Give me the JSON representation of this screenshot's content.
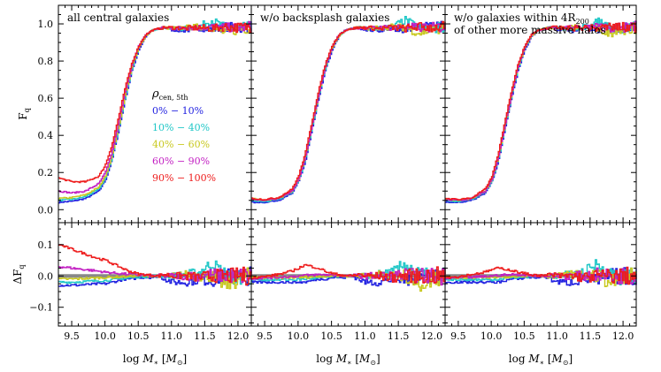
{
  "figure": {
    "panel_titles": [
      [
        "all central galaxies"
      ],
      [
        "w/o backsplash galaxies"
      ],
      [
        "w/o galaxies within 4R₂₀₀",
        "of other more massive halos"
      ]
    ],
    "xlabel": "log M∗ [M⊙]",
    "ylabel_top": "F_q",
    "ylabel_bottom": "ΔF_q",
    "legend_title": "ρcen, 5th"
  },
  "colors": {
    "0-10": "#1f1fe0",
    "10-40": "#1fc7c7",
    "40-60": "#c8c81e",
    "60-90": "#c21ec2",
    "90-100": "#ee1b1b",
    "zero_band": "#888888"
  },
  "chart_data": {
    "type": "line",
    "x": [
      9.3,
      9.5,
      9.7,
      9.9,
      10.0,
      10.1,
      10.2,
      10.3,
      10.4,
      10.5,
      10.6,
      10.7,
      10.8,
      10.9,
      11.0,
      11.2,
      11.4,
      11.6,
      11.8,
      12.0,
      12.2
    ],
    "xlim": [
      9.3,
      12.2
    ],
    "xticks": [
      "9.5",
      "10.0",
      "10.5",
      "11.0",
      "11.5",
      "12.0"
    ],
    "top_ylim": [
      -0.07,
      1.1
    ],
    "top_yticks": [
      "0.0",
      "0.2",
      "0.4",
      "0.6",
      "0.8",
      "1.0"
    ],
    "bottom_ylim": [
      -0.16,
      0.17
    ],
    "bottom_yticks": [
      "−0.1",
      "0.0",
      "0.1"
    ],
    "legend": [
      "0% − 10%",
      "10% − 40%",
      "40% − 60%",
      "60% − 90%",
      "90% − 100%"
    ],
    "panels": [
      {
        "series": [
          {
            "name": "0% − 10%",
            "color_key": "0-10",
            "values": [
              0.04,
              0.045,
              0.06,
              0.1,
              0.16,
              0.27,
              0.43,
              0.6,
              0.75,
              0.86,
              0.93,
              0.965,
              0.975,
              0.98,
              0.97,
              0.965,
              0.98,
              0.97,
              0.985,
              0.98,
              0.985
            ]
          },
          {
            "name": "10% − 40%",
            "color_key": "10-40",
            "values": [
              0.05,
              0.055,
              0.07,
              0.11,
              0.17,
              0.28,
              0.44,
              0.61,
              0.76,
              0.87,
              0.935,
              0.965,
              0.975,
              0.98,
              0.975,
              0.975,
              0.985,
              1.02,
              0.98,
              0.975,
              0.985
            ]
          },
          {
            "name": "40% − 60%",
            "color_key": "40-60",
            "values": [
              0.06,
              0.065,
              0.08,
              0.12,
              0.18,
              0.29,
              0.45,
              0.62,
              0.77,
              0.87,
              0.935,
              0.965,
              0.975,
              0.98,
              0.975,
              0.98,
              0.985,
              0.98,
              0.95,
              0.97,
              0.98
            ]
          },
          {
            "name": "60% − 90%",
            "color_key": "60-90",
            "values": [
              0.1,
              0.09,
              0.1,
              0.14,
              0.2,
              0.31,
              0.47,
              0.64,
              0.78,
              0.88,
              0.94,
              0.965,
              0.975,
              0.98,
              0.975,
              0.98,
              0.98,
              0.985,
              0.98,
              0.98,
              0.985
            ]
          },
          {
            "name": "90% − 100%",
            "color_key": "90-100",
            "values": [
              0.17,
              0.15,
              0.15,
              0.18,
              0.24,
              0.35,
              0.5,
              0.66,
              0.79,
              0.88,
              0.94,
              0.965,
              0.975,
              0.98,
              0.98,
              0.975,
              0.98,
              0.975,
              0.985,
              0.98,
              0.985
            ]
          }
        ],
        "delta_series": [
          {
            "name": "0% − 10%",
            "color_key": "0-10",
            "values": [
              -0.03,
              -0.03,
              -0.028,
              -0.025,
              -0.025,
              -0.02,
              -0.015,
              -0.01,
              -0.01,
              -0.005,
              -0.005,
              -0.005,
              0.0,
              -0.01,
              -0.02,
              -0.02,
              -0.01,
              -0.015,
              0.0,
              0.0,
              0.0
            ]
          },
          {
            "name": "10% − 40%",
            "color_key": "10-40",
            "values": [
              -0.02,
              -0.02,
              -0.018,
              -0.015,
              -0.015,
              -0.012,
              -0.01,
              -0.008,
              -0.005,
              -0.003,
              -0.002,
              0.0,
              0.0,
              0.0,
              0.0,
              0.005,
              0.01,
              0.04,
              0.005,
              -0.005,
              0.0
            ]
          },
          {
            "name": "40% − 60%",
            "color_key": "40-60",
            "values": [
              -0.01,
              -0.01,
              -0.008,
              -0.006,
              -0.005,
              -0.004,
              -0.003,
              -0.002,
              0.0,
              0.0,
              0.0,
              0.0,
              0.0,
              0.0,
              0.0,
              0.005,
              0.0,
              0.0,
              -0.03,
              -0.01,
              0.0
            ]
          },
          {
            "name": "60% − 90%",
            "color_key": "60-90",
            "values": [
              0.03,
              0.025,
              0.02,
              0.015,
              0.012,
              0.01,
              0.008,
              0.006,
              0.005,
              0.003,
              0.002,
              0.0,
              0.0,
              0.0,
              0.0,
              0.0,
              0.0,
              0.005,
              0.0,
              0.0,
              0.0
            ]
          },
          {
            "name": "90% − 100%",
            "color_key": "90-100",
            "values": [
              0.1,
              0.085,
              0.07,
              0.055,
              0.05,
              0.04,
              0.03,
              0.02,
              0.012,
              0.006,
              0.004,
              0.002,
              0.0,
              0.005,
              0.0,
              0.0,
              -0.005,
              0.0,
              0.0,
              0.0,
              0.0
            ]
          }
        ]
      },
      {
        "series": [
          {
            "name": "0% − 10%",
            "color_key": "0-10",
            "values": [
              0.04,
              0.04,
              0.05,
              0.09,
              0.15,
              0.26,
              0.43,
              0.6,
              0.75,
              0.86,
              0.93,
              0.965,
              0.975,
              0.98,
              0.97,
              0.965,
              0.98,
              0.97,
              0.985,
              0.98,
              0.985
            ]
          },
          {
            "name": "10% − 40%",
            "color_key": "10-40",
            "values": [
              0.05,
              0.045,
              0.055,
              0.095,
              0.155,
              0.27,
              0.44,
              0.61,
              0.76,
              0.87,
              0.935,
              0.965,
              0.975,
              0.98,
              0.975,
              0.975,
              0.985,
              1.02,
              0.98,
              0.975,
              0.985
            ]
          },
          {
            "name": "40% − 60%",
            "color_key": "40-60",
            "values": [
              0.06,
              0.05,
              0.06,
              0.1,
              0.16,
              0.28,
              0.45,
              0.62,
              0.77,
              0.87,
              0.935,
              0.965,
              0.975,
              0.98,
              0.975,
              0.98,
              0.985,
              0.98,
              0.95,
              0.97,
              0.98
            ]
          },
          {
            "name": "60% − 90%",
            "color_key": "60-90",
            "values": [
              0.055,
              0.05,
              0.06,
              0.1,
              0.16,
              0.28,
              0.45,
              0.62,
              0.77,
              0.875,
              0.94,
              0.965,
              0.975,
              0.98,
              0.975,
              0.98,
              0.98,
              0.985,
              0.98,
              0.98,
              0.985
            ]
          },
          {
            "name": "90% − 100%",
            "color_key": "90-100",
            "values": [
              0.06,
              0.055,
              0.065,
              0.11,
              0.18,
              0.3,
              0.47,
              0.64,
              0.78,
              0.88,
              0.94,
              0.965,
              0.975,
              0.98,
              0.98,
              0.975,
              0.98,
              0.975,
              0.985,
              0.98,
              0.985
            ]
          }
        ],
        "delta_series": [
          {
            "name": "0% − 10%",
            "color_key": "0-10",
            "values": [
              -0.02,
              -0.02,
              -0.02,
              -0.02,
              -0.02,
              -0.02,
              -0.015,
              -0.01,
              -0.01,
              -0.005,
              -0.005,
              -0.005,
              0.0,
              -0.01,
              -0.02,
              -0.02,
              -0.01,
              -0.015,
              0.0,
              0.0,
              0.0
            ]
          },
          {
            "name": "10% − 40%",
            "color_key": "10-40",
            "values": [
              -0.01,
              -0.012,
              -0.012,
              -0.012,
              -0.012,
              -0.01,
              -0.008,
              -0.006,
              -0.005,
              -0.003,
              -0.002,
              0.0,
              0.0,
              0.0,
              0.0,
              0.005,
              0.01,
              0.04,
              0.005,
              -0.005,
              0.0
            ]
          },
          {
            "name": "40% − 60%",
            "color_key": "40-60",
            "values": [
              -0.005,
              -0.006,
              -0.006,
              -0.005,
              -0.005,
              -0.004,
              -0.003,
              -0.002,
              0.0,
              0.0,
              0.0,
              0.0,
              0.0,
              0.0,
              0.0,
              0.005,
              0.0,
              0.0,
              -0.03,
              -0.01,
              0.0
            ]
          },
          {
            "name": "60% − 90%",
            "color_key": "60-90",
            "values": [
              -0.008,
              -0.006,
              -0.004,
              -0.002,
              0.0,
              0.002,
              0.003,
              0.004,
              0.004,
              0.003,
              0.002,
              0.0,
              0.0,
              0.0,
              0.0,
              0.0,
              0.0,
              0.005,
              0.0,
              0.0,
              0.0
            ]
          },
          {
            "name": "90% − 100%",
            "color_key": "90-100",
            "values": [
              -0.005,
              -0.002,
              0.005,
              0.015,
              0.025,
              0.035,
              0.03,
              0.025,
              0.015,
              0.008,
              0.004,
              0.002,
              0.0,
              0.005,
              0.0,
              0.0,
              -0.005,
              0.0,
              0.0,
              0.0,
              0.0
            ]
          }
        ]
      },
      {
        "series": [
          {
            "name": "0% − 10%",
            "color_key": "0-10",
            "values": [
              0.04,
              0.04,
              0.05,
              0.09,
              0.15,
              0.26,
              0.43,
              0.6,
              0.75,
              0.86,
              0.93,
              0.965,
              0.975,
              0.98,
              0.97,
              0.965,
              0.98,
              0.97,
              0.985,
              0.98,
              0.985
            ]
          },
          {
            "name": "10% − 40%",
            "color_key": "10-40",
            "values": [
              0.05,
              0.045,
              0.055,
              0.095,
              0.155,
              0.27,
              0.44,
              0.61,
              0.76,
              0.87,
              0.935,
              0.965,
              0.975,
              0.98,
              0.975,
              0.975,
              0.985,
              1.02,
              0.98,
              0.975,
              0.985
            ]
          },
          {
            "name": "40% − 60%",
            "color_key": "40-60",
            "values": [
              0.055,
              0.05,
              0.06,
              0.1,
              0.16,
              0.28,
              0.45,
              0.62,
              0.77,
              0.87,
              0.935,
              0.965,
              0.975,
              0.98,
              0.975,
              0.98,
              0.985,
              0.98,
              0.95,
              0.97,
              0.98
            ]
          },
          {
            "name": "60% − 90%",
            "color_key": "60-90",
            "values": [
              0.055,
              0.05,
              0.06,
              0.1,
              0.16,
              0.28,
              0.45,
              0.62,
              0.77,
              0.875,
              0.94,
              0.965,
              0.975,
              0.98,
              0.975,
              0.98,
              0.98,
              0.985,
              0.98,
              0.98,
              0.985
            ]
          },
          {
            "name": "90% − 100%",
            "color_key": "90-100",
            "values": [
              0.06,
              0.055,
              0.065,
              0.11,
              0.175,
              0.3,
              0.47,
              0.64,
              0.78,
              0.88,
              0.94,
              0.965,
              0.975,
              0.98,
              0.98,
              0.975,
              0.98,
              0.975,
              0.985,
              0.98,
              0.985
            ]
          }
        ],
        "delta_series": [
          {
            "name": "0% − 10%",
            "color_key": "0-10",
            "values": [
              -0.02,
              -0.02,
              -0.02,
              -0.02,
              -0.02,
              -0.02,
              -0.015,
              -0.01,
              -0.01,
              -0.005,
              -0.005,
              -0.005,
              0.0,
              -0.01,
              -0.02,
              -0.02,
              -0.01,
              -0.015,
              0.0,
              0.0,
              0.0
            ]
          },
          {
            "name": "10% − 40%",
            "color_key": "10-40",
            "values": [
              -0.01,
              -0.012,
              -0.012,
              -0.012,
              -0.012,
              -0.01,
              -0.008,
              -0.006,
              -0.005,
              -0.003,
              -0.002,
              0.0,
              0.0,
              0.0,
              0.0,
              0.005,
              0.01,
              0.04,
              0.005,
              -0.005,
              0.0
            ]
          },
          {
            "name": "40% − 60%",
            "color_key": "40-60",
            "values": [
              -0.005,
              -0.006,
              -0.006,
              -0.005,
              -0.005,
              -0.004,
              -0.003,
              -0.002,
              0.0,
              0.0,
              0.0,
              0.0,
              0.0,
              0.0,
              0.0,
              0.005,
              0.0,
              0.0,
              -0.02,
              -0.01,
              0.0
            ]
          },
          {
            "name": "60% − 90%",
            "color_key": "60-90",
            "values": [
              -0.008,
              -0.006,
              -0.004,
              -0.002,
              0.0,
              0.002,
              0.003,
              0.004,
              0.004,
              0.003,
              0.002,
              0.0,
              0.0,
              0.0,
              0.0,
              0.0,
              0.0,
              0.005,
              0.0,
              0.0,
              0.0
            ]
          },
          {
            "name": "90% − 100%",
            "color_key": "90-100",
            "values": [
              -0.005,
              -0.002,
              0.005,
              0.012,
              0.02,
              0.025,
              0.022,
              0.018,
              0.012,
              0.008,
              0.004,
              0.002,
              0.0,
              0.005,
              0.0,
              0.0,
              -0.005,
              0.0,
              0.0,
              0.0,
              0.0
            ]
          }
        ]
      }
    ]
  }
}
